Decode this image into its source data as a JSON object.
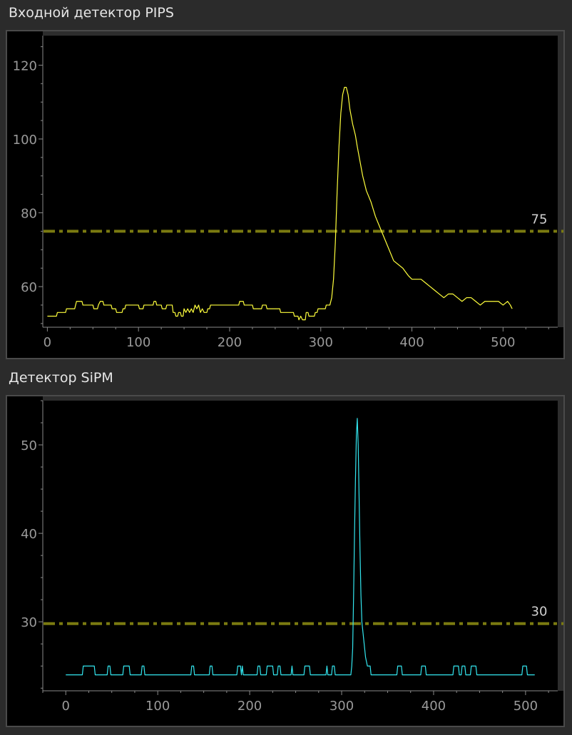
{
  "charts": [
    {
      "title": "Входной детектор PIPS",
      "colors": {
        "series": "#ffff3c",
        "threshold": "#7a7a10",
        "axis": "#8a8a8a",
        "plot_bg": "#000000"
      }
    },
    {
      "title": "Детектор SiPM",
      "colors": {
        "series": "#33e6ef",
        "threshold": "#7a7a10",
        "axis": "#8a8a8a",
        "plot_bg": "#000000"
      }
    }
  ],
  "chart_data": [
    {
      "type": "line",
      "title": "Входной детектор PIPS",
      "xlabel": "",
      "ylabel": "",
      "xlim": [
        -5,
        560
      ],
      "ylim": [
        49,
        128
      ],
      "xticks": [
        0,
        100,
        200,
        300,
        400,
        500
      ],
      "yticks": [
        60,
        80,
        100,
        120
      ],
      "grid": false,
      "threshold": {
        "value": 75,
        "label": "75"
      },
      "series": [
        {
          "points": [
            [
              0,
              52
            ],
            [
              10,
              52
            ],
            [
              11,
              53
            ],
            [
              20,
              53
            ],
            [
              21,
              54
            ],
            [
              30,
              54
            ],
            [
              31,
              55
            ],
            [
              32,
              56
            ],
            [
              38,
              56
            ],
            [
              39,
              55
            ],
            [
              50,
              55
            ],
            [
              51,
              54
            ],
            [
              55,
              54
            ],
            [
              56,
              55
            ],
            [
              58,
              56
            ],
            [
              61,
              56
            ],
            [
              62,
              55
            ],
            [
              70,
              55
            ],
            [
              71,
              54
            ],
            [
              75,
              54
            ],
            [
              76,
              53
            ],
            [
              82,
              53
            ],
            [
              83,
              54
            ],
            [
              85,
              54
            ],
            [
              86,
              55
            ],
            [
              100,
              55
            ],
            [
              101,
              54
            ],
            [
              105,
              54
            ],
            [
              106,
              55
            ],
            [
              116,
              55
            ],
            [
              117,
              56
            ],
            [
              119,
              56
            ],
            [
              120,
              55
            ],
            [
              125,
              55
            ],
            [
              126,
              54
            ],
            [
              130,
              54
            ],
            [
              131,
              55
            ],
            [
              137,
              55
            ],
            [
              138,
              53
            ],
            [
              140,
              53
            ],
            [
              141,
              52
            ],
            [
              143,
              52
            ],
            [
              144,
              53
            ],
            [
              146,
              53
            ],
            [
              147,
              52
            ],
            [
              149,
              52
            ],
            [
              150,
              54
            ],
            [
              152,
              53
            ],
            [
              154,
              54
            ],
            [
              156,
              53
            ],
            [
              158,
              54
            ],
            [
              160,
              53
            ],
            [
              162,
              55
            ],
            [
              164,
              54
            ],
            [
              166,
              55
            ],
            [
              168,
              53
            ],
            [
              170,
              54
            ],
            [
              172,
              53
            ],
            [
              175,
              53
            ],
            [
              176,
              54
            ],
            [
              178,
              54
            ],
            [
              179,
              55
            ],
            [
              200,
              55
            ],
            [
              210,
              55
            ],
            [
              211,
              56
            ],
            [
              215,
              56
            ],
            [
              216,
              55
            ],
            [
              225,
              55
            ],
            [
              226,
              54
            ],
            [
              235,
              54
            ],
            [
              236,
              55
            ],
            [
              240,
              55
            ],
            [
              241,
              54
            ],
            [
              255,
              54
            ],
            [
              256,
              53
            ],
            [
              270,
              53
            ],
            [
              271,
              52
            ],
            [
              275,
              52
            ],
            [
              276,
              51
            ],
            [
              278,
              52
            ],
            [
              280,
              51
            ],
            [
              283,
              51
            ],
            [
              284,
              53
            ],
            [
              286,
              53
            ],
            [
              287,
              52
            ],
            [
              293,
              52
            ],
            [
              294,
              53
            ],
            [
              296,
              53
            ],
            [
              297,
              54
            ],
            [
              305,
              54
            ],
            [
              306,
              55
            ],
            [
              310,
              55
            ],
            [
              312,
              57
            ],
            [
              314,
              62
            ],
            [
              316,
              72
            ],
            [
              318,
              86
            ],
            [
              320,
              98
            ],
            [
              322,
              107
            ],
            [
              324,
              112
            ],
            [
              326,
              114
            ],
            [
              328,
              114
            ],
            [
              330,
              112
            ],
            [
              332,
              108
            ],
            [
              335,
              104
            ],
            [
              338,
              101
            ],
            [
              340,
              98
            ],
            [
              343,
              94
            ],
            [
              346,
              90
            ],
            [
              350,
              86
            ],
            [
              355,
              83
            ],
            [
              360,
              79
            ],
            [
              365,
              76
            ],
            [
              370,
              73
            ],
            [
              375,
              70
            ],
            [
              380,
              67
            ],
            [
              385,
              66
            ],
            [
              390,
              65
            ],
            [
              393,
              64
            ],
            [
              396,
              63
            ],
            [
              400,
              62
            ],
            [
              405,
              62
            ],
            [
              410,
              62
            ],
            [
              415,
              61
            ],
            [
              420,
              60
            ],
            [
              425,
              59
            ],
            [
              430,
              58
            ],
            [
              435,
              57
            ],
            [
              440,
              58
            ],
            [
              445,
              58
            ],
            [
              450,
              57
            ],
            [
              455,
              56
            ],
            [
              460,
              57
            ],
            [
              465,
              57
            ],
            [
              470,
              56
            ],
            [
              475,
              55
            ],
            [
              480,
              56
            ],
            [
              485,
              56
            ],
            [
              490,
              56
            ],
            [
              495,
              56
            ],
            [
              500,
              55
            ],
            [
              505,
              56
            ],
            [
              508,
              55
            ],
            [
              510,
              54
            ]
          ]
        }
      ]
    },
    {
      "type": "line",
      "title": "Детектор SiPM",
      "xlabel": "",
      "ylabel": "",
      "xlim": [
        -25,
        535
      ],
      "ylim": [
        22.2,
        55
      ],
      "xticks": [
        0,
        100,
        200,
        300,
        400,
        500
      ],
      "yticks": [
        30,
        40,
        50
      ],
      "grid": false,
      "threshold": {
        "value": 29.8,
        "label": "30"
      },
      "series": [
        {
          "points": [
            [
              0,
              24
            ],
            [
              18,
              24
            ],
            [
              19,
              25
            ],
            [
              31,
              25
            ],
            [
              32,
              24
            ],
            [
              45,
              24
            ],
            [
              46,
              25
            ],
            [
              48,
              25
            ],
            [
              49,
              24
            ],
            [
              62,
              24
            ],
            [
              63,
              25
            ],
            [
              69,
              25
            ],
            [
              70,
              24
            ],
            [
              82,
              24
            ],
            [
              83,
              25
            ],
            [
              85,
              25
            ],
            [
              86,
              24
            ],
            [
              136,
              24
            ],
            [
              137,
              25
            ],
            [
              139,
              25
            ],
            [
              140,
              24
            ],
            [
              156,
              24
            ],
            [
              157,
              25
            ],
            [
              159,
              25
            ],
            [
              160,
              24
            ],
            [
              186,
              24
            ],
            [
              187,
              25
            ],
            [
              190,
              25
            ],
            [
              191,
              24
            ],
            [
              192,
              25
            ],
            [
              193,
              24
            ],
            [
              208,
              24
            ],
            [
              209,
              25
            ],
            [
              211,
              25
            ],
            [
              212,
              24
            ],
            [
              218,
              24
            ],
            [
              219,
              25
            ],
            [
              225,
              25
            ],
            [
              226,
              24
            ],
            [
              230,
              24
            ],
            [
              231,
              25
            ],
            [
              233,
              25
            ],
            [
              234,
              24
            ],
            [
              245,
              24
            ],
            [
              246,
              25
            ],
            [
              247,
              24
            ],
            [
              259,
              24
            ],
            [
              260,
              25
            ],
            [
              265,
              25
            ],
            [
              266,
              24
            ],
            [
              283,
              24
            ],
            [
              284,
              25
            ],
            [
              285,
              24
            ],
            [
              289,
              24
            ],
            [
              290,
              25
            ],
            [
              292,
              25
            ],
            [
              293,
              24
            ],
            [
              310,
              24
            ],
            [
              311,
              25
            ],
            [
              312,
              27
            ],
            [
              313,
              33
            ],
            [
              314,
              40
            ],
            [
              315,
              46
            ],
            [
              316,
              51
            ],
            [
              317,
              53
            ],
            [
              318,
              50
            ],
            [
              319,
              44
            ],
            [
              320,
              38
            ],
            [
              321,
              33
            ],
            [
              322,
              30
            ],
            [
              324,
              28
            ],
            [
              326,
              26
            ],
            [
              328,
              25
            ],
            [
              331,
              25
            ],
            [
              332,
              24
            ],
            [
              360,
              24
            ],
            [
              361,
              25
            ],
            [
              365,
              25
            ],
            [
              366,
              24
            ],
            [
              386,
              24
            ],
            [
              387,
              25
            ],
            [
              391,
              25
            ],
            [
              392,
              24
            ],
            [
              421,
              24
            ],
            [
              422,
              25
            ],
            [
              427,
              25
            ],
            [
              428,
              24
            ],
            [
              430,
              24
            ],
            [
              431,
              25
            ],
            [
              434,
              25
            ],
            [
              435,
              24
            ],
            [
              440,
              24
            ],
            [
              441,
              25
            ],
            [
              446,
              25
            ],
            [
              447,
              24
            ],
            [
              496,
              24
            ],
            [
              497,
              25
            ],
            [
              501,
              25
            ],
            [
              502,
              24
            ],
            [
              510,
              24
            ]
          ]
        }
      ]
    }
  ]
}
